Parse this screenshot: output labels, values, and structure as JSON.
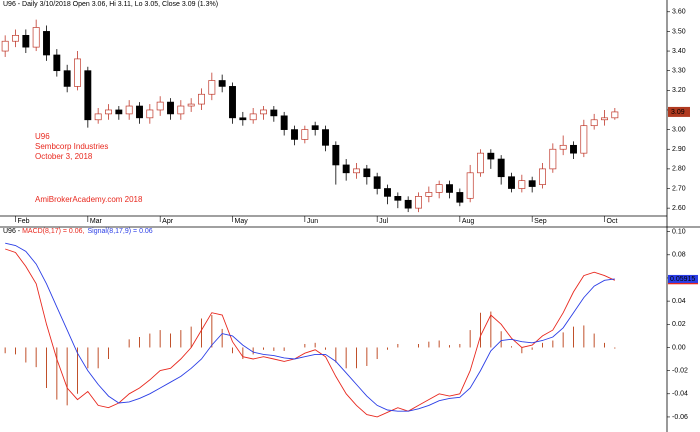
{
  "chart_data": [
    {
      "type": "candlestick",
      "title": "U96 - Daily 3/10/2018 Open 3.06, Hi 3.11, Lo 3.05, Close 3.09 (1.3%)",
      "annotations": [
        "U96",
        "Sembcorp Industries",
        "October 3, 2018",
        "AmiBrokerAcademy.com  2018"
      ],
      "annotation_color": "#e8281e",
      "categories": [
        null,
        "Feb",
        null,
        null,
        null,
        null,
        null,
        null,
        "Mar",
        null,
        null,
        null,
        null,
        null,
        null,
        "Apr",
        null,
        null,
        null,
        null,
        null,
        null,
        "May",
        null,
        null,
        null,
        null,
        null,
        null,
        "Jun",
        null,
        null,
        null,
        null,
        null,
        null,
        "Jul",
        null,
        null,
        null,
        null,
        null,
        null,
        null,
        "Aug",
        null,
        null,
        null,
        null,
        null,
        null,
        "Sep",
        null,
        null,
        null,
        null,
        null,
        null,
        "Oct",
        null
      ],
      "open": [
        3.4,
        3.45,
        3.48,
        3.42,
        3.5,
        3.38,
        3.3,
        3.22,
        3.3,
        3.05,
        3.08,
        3.1,
        3.08,
        3.12,
        3.06,
        3.1,
        3.14,
        3.08,
        3.12,
        3.13,
        3.18,
        3.25,
        3.22,
        3.06,
        3.05,
        3.08,
        3.1,
        3.07,
        3.0,
        2.95,
        3.02,
        3.0,
        2.92,
        2.82,
        2.78,
        2.8,
        2.76,
        2.7,
        2.66,
        2.64,
        2.6,
        2.66,
        2.68,
        2.72,
        2.68,
        2.65,
        2.78,
        2.88,
        2.85,
        2.76,
        2.7,
        2.74,
        2.72,
        2.8,
        2.9,
        2.92,
        2.88,
        3.02,
        3.05,
        3.06
      ],
      "high": [
        3.48,
        3.51,
        3.51,
        3.56,
        3.53,
        3.41,
        3.33,
        3.4,
        3.32,
        3.11,
        3.13,
        3.12,
        3.15,
        3.14,
        3.13,
        3.17,
        3.16,
        3.15,
        3.16,
        3.21,
        3.29,
        3.28,
        3.24,
        3.09,
        3.11,
        3.12,
        3.12,
        3.09,
        3.02,
        3.02,
        3.04,
        3.02,
        2.94,
        2.85,
        2.83,
        2.82,
        2.78,
        2.72,
        2.68,
        2.66,
        2.68,
        2.71,
        2.74,
        2.74,
        2.7,
        2.82,
        2.9,
        2.9,
        2.87,
        2.78,
        2.77,
        2.76,
        2.83,
        2.93,
        2.97,
        2.94,
        3.05,
        3.08,
        3.1,
        3.11
      ],
      "low": [
        3.37,
        3.42,
        3.39,
        3.4,
        3.35,
        3.27,
        3.19,
        3.2,
        3.01,
        3.03,
        3.05,
        3.05,
        3.05,
        3.03,
        3.03,
        3.07,
        3.05,
        3.05,
        3.09,
        3.1,
        3.15,
        3.19,
        3.03,
        3.02,
        3.03,
        3.05,
        3.04,
        2.97,
        2.92,
        2.93,
        2.97,
        2.89,
        2.72,
        2.74,
        2.75,
        2.72,
        2.67,
        2.62,
        2.6,
        2.58,
        2.58,
        2.63,
        2.65,
        2.65,
        2.61,
        2.63,
        2.76,
        2.8,
        2.72,
        2.68,
        2.68,
        2.68,
        2.7,
        2.78,
        2.87,
        2.85,
        2.86,
        3.0,
        3.02,
        3.05
      ],
      "close": [
        3.45,
        3.48,
        3.42,
        3.52,
        3.38,
        3.3,
        3.22,
        3.36,
        3.05,
        3.08,
        3.1,
        3.08,
        3.12,
        3.06,
        3.1,
        3.14,
        3.08,
        3.12,
        3.13,
        3.18,
        3.25,
        3.22,
        3.06,
        3.05,
        3.08,
        3.1,
        3.07,
        3.0,
        2.95,
        3.0,
        3.0,
        2.92,
        2.82,
        2.78,
        2.8,
        2.76,
        2.7,
        2.66,
        2.64,
        2.6,
        2.66,
        2.68,
        2.72,
        2.68,
        2.63,
        2.78,
        2.88,
        2.85,
        2.76,
        2.7,
        2.74,
        2.71,
        2.8,
        2.9,
        2.92,
        2.88,
        3.02,
        3.05,
        3.06,
        3.09
      ],
      "up_color": "#c0392b",
      "down_color": "#000000",
      "last_value_color": "#b03a20",
      "ylim": [
        2.56,
        3.66
      ],
      "yticks": [
        {
          "value": 2.6,
          "label": "2.60"
        },
        {
          "value": 2.7,
          "label": "2.70"
        },
        {
          "value": 2.8,
          "label": "2.80"
        },
        {
          "value": 2.9,
          "label": "2.90"
        },
        {
          "value": 3.0,
          "label": "3.00"
        },
        {
          "value": 3.1,
          "label": "3.10"
        },
        {
          "value": 3.2,
          "label": "3.20"
        },
        {
          "value": 3.3,
          "label": "3.30"
        },
        {
          "value": 3.4,
          "label": "3.40"
        },
        {
          "value": 3.5,
          "label": "3.50"
        },
        {
          "value": 3.6,
          "label": "3.60"
        }
      ]
    },
    {
      "type": "line",
      "title": "U96 - ",
      "series": [
        {
          "name": "MACD(8,17) = 0.06,",
          "color": "#e8281e",
          "values": [
            0.085,
            0.082,
            0.07,
            0.055,
            0.02,
            -0.01,
            -0.035,
            -0.045,
            -0.038,
            -0.05,
            -0.052,
            -0.048,
            -0.04,
            -0.035,
            -0.028,
            -0.02,
            -0.018,
            -0.01,
            0.0,
            0.015,
            0.03,
            0.028,
            0.005,
            -0.008,
            -0.01,
            -0.008,
            -0.01,
            -0.012,
            -0.01,
            -0.005,
            -0.002,
            -0.008,
            -0.025,
            -0.04,
            -0.05,
            -0.058,
            -0.06,
            -0.056,
            -0.052,
            -0.055,
            -0.05,
            -0.045,
            -0.04,
            -0.042,
            -0.04,
            -0.02,
            0.01,
            0.028,
            0.02,
            0.008,
            0.0,
            0.002,
            0.01,
            0.015,
            0.03,
            0.048,
            0.062,
            0.065,
            0.062,
            0.058
          ]
        },
        {
          "name": "Signal(8,17,9) = 0.06",
          "color": "#2b3ee6",
          "values": [
            0.09,
            0.088,
            0.083,
            0.072,
            0.055,
            0.035,
            0.015,
            -0.005,
            -0.02,
            -0.032,
            -0.042,
            -0.048,
            -0.047,
            -0.044,
            -0.04,
            -0.035,
            -0.03,
            -0.025,
            -0.018,
            -0.01,
            0.002,
            0.012,
            0.01,
            0.002,
            -0.004,
            -0.006,
            -0.007,
            -0.009,
            -0.01,
            -0.008,
            -0.006,
            -0.006,
            -0.012,
            -0.022,
            -0.032,
            -0.042,
            -0.05,
            -0.054,
            -0.055,
            -0.055,
            -0.053,
            -0.05,
            -0.046,
            -0.044,
            -0.043,
            -0.035,
            -0.02,
            -0.003,
            0.006,
            0.007,
            0.005,
            0.004,
            0.006,
            0.009,
            0.017,
            0.03,
            0.043,
            0.053,
            0.058,
            0.05915
          ]
        }
      ],
      "histogram": {
        "color": "#c0502a",
        "values": [
          -0.005,
          -0.006,
          -0.013,
          -0.017,
          -0.035,
          -0.045,
          -0.05,
          -0.04,
          -0.018,
          -0.018,
          -0.01,
          0.0,
          0.007,
          0.009,
          0.012,
          0.015,
          0.012,
          0.015,
          0.018,
          0.025,
          0.028,
          0.016,
          -0.005,
          -0.01,
          -0.006,
          -0.002,
          -0.003,
          -0.003,
          0.0,
          0.003,
          0.004,
          -0.002,
          -0.013,
          -0.018,
          -0.018,
          -0.016,
          -0.01,
          -0.002,
          0.003,
          0.0,
          0.003,
          0.005,
          0.006,
          0.002,
          0.003,
          0.015,
          0.03,
          0.031,
          0.014,
          0.001,
          -0.005,
          -0.002,
          0.004,
          0.006,
          0.013,
          0.018,
          0.019,
          0.012,
          0.004,
          -0.001
        ]
      },
      "ylim": [
        -0.073,
        0.104
      ],
      "yticks": [
        {
          "value": -0.06,
          "label": "-0.06"
        },
        {
          "value": -0.04,
          "label": "-0.04"
        },
        {
          "value": -0.02,
          "label": "-0.02"
        },
        {
          "value": 0,
          "label": "0.00"
        },
        {
          "value": 0.02,
          "label": "0.02"
        },
        {
          "value": 0.04,
          "label": "0.04"
        },
        {
          "value": 0.06,
          "label": "0.06"
        },
        {
          "value": 0.08,
          "label": "0.08"
        },
        {
          "value": 0.1,
          "label": "0.10"
        }
      ]
    }
  ]
}
